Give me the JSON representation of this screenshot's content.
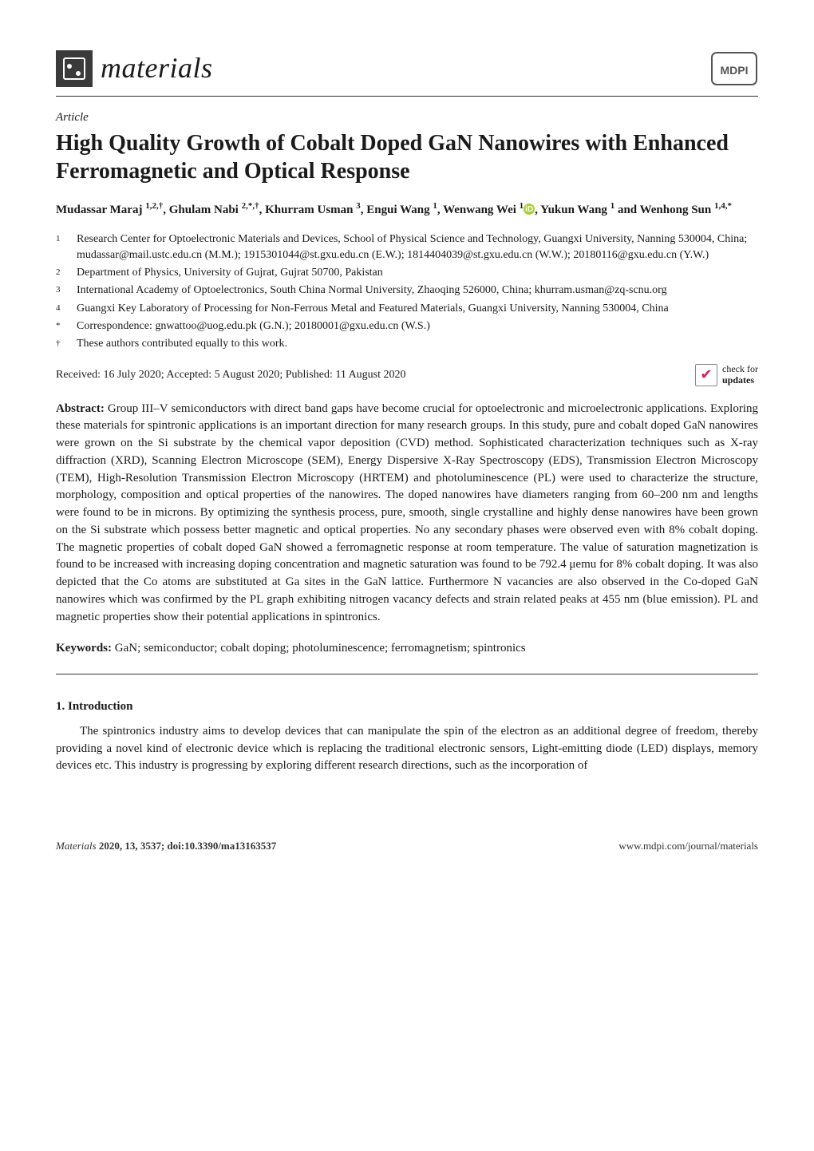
{
  "journal": {
    "name": "materials",
    "publisher_logo_label": "MDPI"
  },
  "article": {
    "type": "Article",
    "title": "High Quality Growth of Cobalt Doped GaN Nanowires with Enhanced Ferromagnetic and Optical Response",
    "authors_html": "Mudassar Maraj <sup>1,2,†</sup>, Ghulam Nabi <sup>2,*,†</sup>, Khurram Usman <sup>3</sup>, Engui Wang <sup>1</sup>, Wenwang Wei <sup>1</sup><span class=\"orcid\" data-name=\"orcid-icon\" data-interactable=\"false\">iD</span>, Yukun Wang <sup>1</sup> and Wenhong Sun <sup>1,4,*</sup>",
    "affiliations": [
      {
        "num": "1",
        "text": "Research Center for Optoelectronic Materials and Devices, School of Physical Science and Technology, Guangxi University, Nanning 530004, China; mudassar@mail.ustc.edu.cn (M.M.); 1915301044@st.gxu.edu.cn (E.W.); 1814404039@st.gxu.edu.cn (W.W.); 20180116@gxu.edu.cn (Y.W.)"
      },
      {
        "num": "2",
        "text": "Department of Physics, University of Gujrat, Gujrat 50700, Pakistan"
      },
      {
        "num": "3",
        "text": "International Academy of Optoelectronics, South China Normal University, Zhaoqing 526000, China; khurram.usman@zq-scnu.org"
      },
      {
        "num": "4",
        "text": "Guangxi Key Laboratory of Processing for Non-Ferrous Metal and Featured Materials, Guangxi University, Nanning 530004, China"
      },
      {
        "num": "*",
        "text": "Correspondence: gnwattoo@uog.edu.pk (G.N.); 20180001@gxu.edu.cn (W.S.)"
      },
      {
        "num": "†",
        "text": "These authors contributed equally to this work."
      }
    ],
    "dates": "Received: 16 July 2020; Accepted: 5 August 2020; Published: 11 August 2020",
    "check_updates": {
      "line1": "check for",
      "line2": "updates"
    },
    "abstract_label": "Abstract:",
    "abstract": "Group III–V semiconductors with direct band gaps have become crucial for optoelectronic and microelectronic applications. Exploring these materials for spintronic applications is an important direction for many research groups. In this study, pure and cobalt doped GaN nanowires were grown on the Si substrate by the chemical vapor deposition (CVD) method. Sophisticated characterization techniques such as X-ray diffraction (XRD), Scanning Electron Microscope (SEM), Energy Dispersive X-Ray Spectroscopy (EDS), Transmission Electron Microscopy (TEM), High-Resolution Transmission Electron Microscopy (HRTEM) and photoluminescence (PL) were used to characterize the structure, morphology, composition and optical properties of the nanowires. The doped nanowires have diameters ranging from 60–200 nm and lengths were found to be in microns. By optimizing the synthesis process, pure, smooth, single crystalline and highly dense nanowires have been grown on the Si substrate which possess better magnetic and optical properties. No any secondary phases were observed even with 8% cobalt doping. The magnetic properties of cobalt doped GaN showed a ferromagnetic response at room temperature. The value of saturation magnetization is found to be increased with increasing doping concentration and magnetic saturation was found to be 792.4 μemu for 8% cobalt doping. It was also depicted that the Co atoms are substituted at Ga sites in the GaN lattice. Furthermore N vacancies are also observed in the Co-doped GaN nanowires which was confirmed by the PL graph exhibiting nitrogen vacancy defects and strain related peaks at 455 nm (blue emission). PL and magnetic properties show their potential applications in spintronics.",
    "keywords_label": "Keywords:",
    "keywords": "GaN; semiconductor; cobalt doping; photoluminescence; ferromagnetism; spintronics"
  },
  "section": {
    "heading": "1. Introduction",
    "body": "The spintronics industry aims to develop devices that can manipulate the spin of the electron as an additional degree of freedom, thereby providing a novel kind of electronic device which is replacing the traditional electronic sensors, Light-emitting diode (LED) displays, memory devices etc. This industry is progressing by exploring different research directions, such as the incorporation of"
  },
  "footer": {
    "left_italic": "Materials",
    "left_rest": " 2020, 13, 3537; doi:10.3390/ma13163537",
    "right": "www.mdpi.com/journal/materials"
  },
  "colors": {
    "text": "#1a1a1a",
    "rule": "#333333",
    "orcid_bg": "#a6ce39",
    "check_accent": "#d81b60",
    "logo_bg": "#3a3a3a"
  }
}
